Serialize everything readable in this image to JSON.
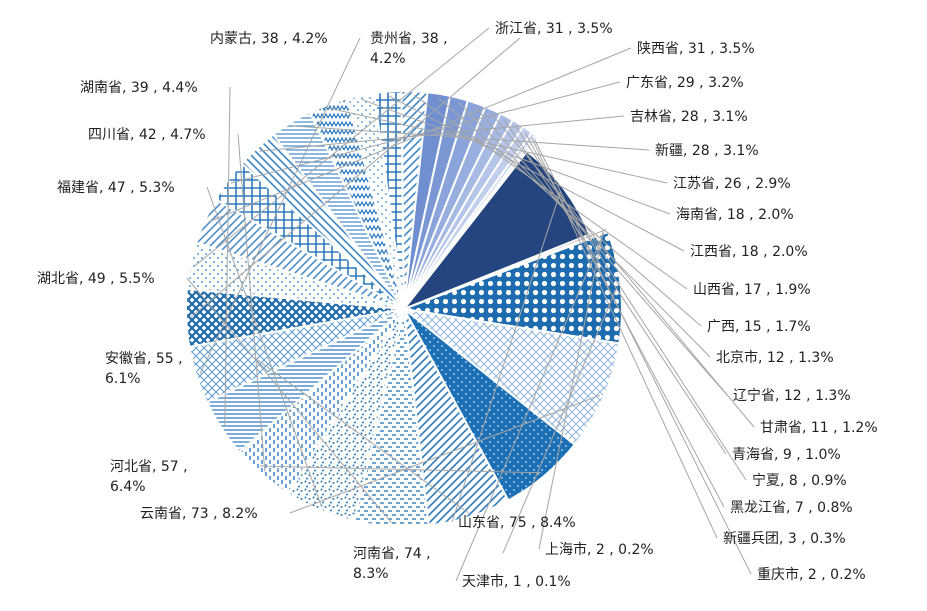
{
  "chart_data": {
    "type": "pie",
    "title": "",
    "slices": [
      {
        "name": "贵州省",
        "value": 38,
        "pct": "4.2%",
        "color": "#1f6aa8",
        "pattern": "diamond",
        "label": [
          "贵州省, 38 ,",
          "4.2%"
        ]
      },
      {
        "name": "浙江省",
        "value": 31,
        "pct": "3.5%",
        "color": "#5a9ad0",
        "pattern": "dots",
        "label": [
          "浙江省, 31 , 3.5%"
        ]
      },
      {
        "name": "陕西省",
        "value": 31,
        "pct": "3.5%",
        "color": "#4b8fca",
        "pattern": "diag",
        "label": [
          "陕西省, 31 , 3.5%"
        ]
      },
      {
        "name": "广东省",
        "value": 29,
        "pct": "3.2%",
        "color": "#2e7bbf",
        "pattern": "grid",
        "label": [
          "广东省, 29 , 3.2%"
        ]
      },
      {
        "name": "吉林省",
        "value": 28,
        "pct": "3.1%",
        "color": "#3a85c6",
        "pattern": "diag2",
        "label": [
          "吉林省, 28 , 3.1%"
        ]
      },
      {
        "name": "新疆",
        "value": 28,
        "pct": "3.1%",
        "color": "#4a8fcc",
        "pattern": "hstripe",
        "label": [
          "新疆, 28 , 3.1%"
        ]
      },
      {
        "name": "江苏省",
        "value": 26,
        "pct": "2.9%",
        "color": "#2f79bb",
        "pattern": "zigzag",
        "label": [
          "江苏省, 26 , 2.9%"
        ]
      },
      {
        "name": "海南省",
        "value": 18,
        "pct": "2.0%",
        "color": "#6aa6d6",
        "pattern": "dots",
        "label": [
          "海南省, 18 , 2.0%"
        ]
      },
      {
        "name": "江西省",
        "value": 18,
        "pct": "2.0%",
        "color": "#2b77b9",
        "pattern": "grid",
        "label": [
          "江西省, 18 , 2.0%"
        ]
      },
      {
        "name": "山西省",
        "value": 17,
        "pct": "1.9%",
        "color": "#3d88c8",
        "pattern": "diag",
        "label": [
          "山西省, 17 , 1.9%"
        ]
      },
      {
        "name": "广西",
        "value": 15,
        "pct": "1.7%",
        "color": "#6f8fd0",
        "pattern": "solid",
        "label": [
          "广西, 15 , 1.7%"
        ]
      },
      {
        "name": "北京市",
        "value": 12,
        "pct": "1.3%",
        "color": "#7b98d4",
        "pattern": "solid",
        "label": [
          "北京市, 12 , 1.3%"
        ]
      },
      {
        "name": "辽宁省",
        "value": 12,
        "pct": "1.3%",
        "color": "#8aa3da",
        "pattern": "solid",
        "label": [
          "辽宁省, 12 , 1.3%"
        ]
      },
      {
        "name": "甘肃省",
        "value": 11,
        "pct": "1.2%",
        "color": "#97aedf",
        "pattern": "solid",
        "label": [
          "甘肃省, 11 , 1.2%"
        ]
      },
      {
        "name": "青海省",
        "value": 9,
        "pct": "1.0%",
        "color": "#a6bae4",
        "pattern": "solid",
        "label": [
          "青海省, 9 , 1.0%"
        ]
      },
      {
        "name": "宁夏",
        "value": 8,
        "pct": "0.9%",
        "color": "#b4c5e9",
        "pattern": "solid",
        "label": [
          "宁夏, 8 , 0.9%"
        ]
      },
      {
        "name": "黑龙江省",
        "value": 7,
        "pct": "0.8%",
        "color": "#c1cfed",
        "pattern": "solid",
        "label": [
          "黑龙江省, 7 , 0.8%"
        ]
      },
      {
        "name": "新疆兵团",
        "value": 3,
        "pct": "0.3%",
        "color": "#ccd8f1",
        "pattern": "solid",
        "label": [
          "新疆兵团, 3 , 0.3%"
        ]
      },
      {
        "name": "重庆市",
        "value": 2,
        "pct": "0.2%",
        "color": "#d6e0f4",
        "pattern": "solid",
        "label": [
          "重庆市, 2 , 0.2%"
        ]
      },
      {
        "name": "山东省",
        "value": 75,
        "pct": "8.4%",
        "color": "#24457f",
        "pattern": "solid",
        "label": [
          "山东省, 75 , 8.4%"
        ]
      },
      {
        "name": "上海市",
        "value": 2,
        "pct": "0.2%",
        "color": "#a0a0a0",
        "pattern": "solid",
        "label": [
          "上海市, 2 , 0.2%"
        ]
      },
      {
        "name": "天津市",
        "value": 1,
        "pct": "0.1%",
        "color": "#a0a0a0",
        "pattern": "solid",
        "label": [
          "天津市, 1 , 0.1%"
        ]
      },
      {
        "name": "河南省",
        "value": 74,
        "pct": "8.3%",
        "color": "#1e6cb0",
        "pattern": "polka",
        "label": [
          "河南省, 74 ,",
          "8.3%"
        ]
      },
      {
        "name": "云南省",
        "value": 73,
        "pct": "8.2%",
        "color": "#8fb5d9",
        "pattern": "crosshatch",
        "label": [
          "云南省, 73 , 8.2%"
        ]
      },
      {
        "name": "河北省",
        "value": 57,
        "pct": "6.4%",
        "color": "#1b6fb5",
        "pattern": "dense",
        "label": [
          "河北省, 57 ,",
          "6.4%"
        ]
      },
      {
        "name": "安徽省",
        "value": 55,
        "pct": "6.1%",
        "color": "#2c7bbf",
        "pattern": "diag",
        "label": [
          "安徽省, 55 ,",
          "6.1%"
        ]
      },
      {
        "name": "湖北省",
        "value": 49,
        "pct": "5.5%",
        "color": "#3b86c6",
        "pattern": "dash",
        "label": [
          "湖北省, 49 , 5.5%"
        ]
      },
      {
        "name": "福建省",
        "value": 47,
        "pct": "5.3%",
        "color": "#2a78ba",
        "pattern": "speckle",
        "label": [
          "福建省, 47 , 5.3%"
        ]
      },
      {
        "name": "四川省",
        "value": 42,
        "pct": "4.7%",
        "color": "#3a87c7",
        "pattern": "vdash",
        "label": [
          "四川省, 42 , 4.7%"
        ]
      },
      {
        "name": "湖南省",
        "value": 39,
        "pct": "4.4%",
        "color": "#2d7cc0",
        "pattern": "hstripe",
        "label": [
          "湖南省, 39 , 4.4%"
        ]
      },
      {
        "name": "内蒙古",
        "value": 38,
        "pct": "4.2%",
        "color": "#5b9bd0",
        "pattern": "crosshatch",
        "label": [
          "内蒙古, 38 , 4.2%"
        ]
      }
    ]
  }
}
